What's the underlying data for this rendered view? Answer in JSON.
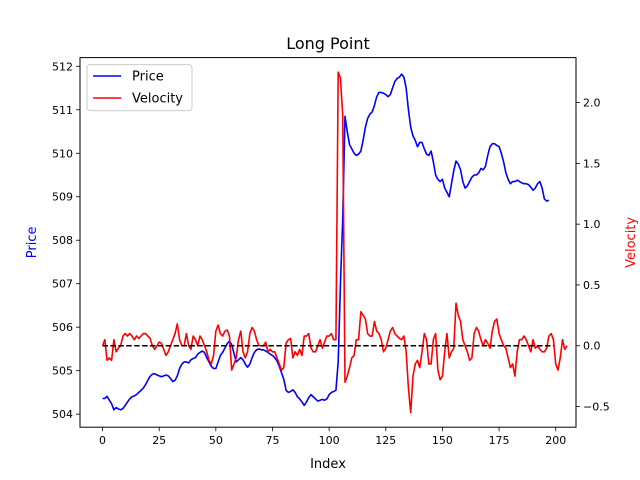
{
  "chart_data": {
    "type": "line",
    "title": "Long Point",
    "xlabel": "Index",
    "ylabel_left": "Price",
    "ylabel_right": "Velocity",
    "xlim": [
      -9.95,
      208.95
    ],
    "ylim_left": [
      503.7,
      512.2
    ],
    "ylim_right": [
      -0.67,
      2.37
    ],
    "x_ticks": [
      0,
      25,
      50,
      75,
      100,
      125,
      150,
      175,
      200
    ],
    "y_ticks_left": [
      504,
      505,
      506,
      507,
      508,
      509,
      510,
      511,
      512
    ],
    "y_ticks_right": [
      -0.5,
      0.0,
      0.5,
      1.0,
      1.5,
      2.0
    ],
    "y_tick_labels_right": [
      "−0.5",
      "0.0",
      "0.5",
      "1.0",
      "1.5",
      "2.0"
    ],
    "legend_position": "upper-left",
    "reference_line": {
      "y": 0.0,
      "axis": "right",
      "x_from": 0,
      "x_to": 199,
      "style": "dashed",
      "color": "#000000"
    },
    "series": [
      {
        "name": "Price",
        "axis": "left",
        "color": "#0000ff",
        "values": [
          504.36,
          504.36,
          504.41,
          504.32,
          504.24,
          504.1,
          504.15,
          504.12,
          504.1,
          504.13,
          504.2,
          504.28,
          504.35,
          504.4,
          504.42,
          504.45,
          504.5,
          504.55,
          504.6,
          504.68,
          504.78,
          504.87,
          504.92,
          504.93,
          504.9,
          504.88,
          504.86,
          504.88,
          504.9,
          504.88,
          504.82,
          504.75,
          504.78,
          504.88,
          505.05,
          505.15,
          505.2,
          505.2,
          505.18,
          505.25,
          505.28,
          505.3,
          505.38,
          505.42,
          505.45,
          505.42,
          505.3,
          505.2,
          505.1,
          505.05,
          505.05,
          505.2,
          505.35,
          505.42,
          505.52,
          505.62,
          505.68,
          505.6,
          505.4,
          505.2,
          505.25,
          505.3,
          505.25,
          505.15,
          505.08,
          505.15,
          505.3,
          505.42,
          505.48,
          505.5,
          505.48,
          505.48,
          505.45,
          505.42,
          505.38,
          505.35,
          505.3,
          505.22,
          505.1,
          504.95,
          504.8,
          504.55,
          504.5,
          504.52,
          504.56,
          504.5,
          504.4,
          504.35,
          504.28,
          504.2,
          504.28,
          504.38,
          504.45,
          504.4,
          504.35,
          504.3,
          504.32,
          504.34,
          504.32,
          504.35,
          504.45,
          504.5,
          504.52,
          504.55,
          505.2,
          507.0,
          508.5,
          510.85,
          510.5,
          510.2,
          510.1,
          510.0,
          509.95,
          509.98,
          510.05,
          510.3,
          510.6,
          510.8,
          510.9,
          510.95,
          511.1,
          511.3,
          511.4,
          511.4,
          511.38,
          511.35,
          511.3,
          511.35,
          511.5,
          511.65,
          511.72,
          511.75,
          511.82,
          511.75,
          511.5,
          511.0,
          510.6,
          510.4,
          510.3,
          510.15,
          510.25,
          510.25,
          510.1,
          509.98,
          509.95,
          510.05,
          509.8,
          509.5,
          509.4,
          509.35,
          509.4,
          509.2,
          509.1,
          509.0,
          509.3,
          509.6,
          509.82,
          509.75,
          509.62,
          509.35,
          509.2,
          509.25,
          509.35,
          509.45,
          509.5,
          509.5,
          509.55,
          509.65,
          509.62,
          509.7,
          509.95,
          510.15,
          510.22,
          510.22,
          510.18,
          510.15,
          510.0,
          509.8,
          509.55,
          509.4,
          509.3,
          509.35,
          509.35,
          509.38,
          509.35,
          509.32,
          509.3,
          509.3,
          509.28,
          509.22,
          509.15,
          509.2,
          509.3,
          509.35,
          509.2,
          508.95,
          508.9,
          508.92
        ]
      },
      {
        "name": "Velocity",
        "axis": "right",
        "color": "#ff0000",
        "values": [
          0.0,
          0.05,
          -0.12,
          -0.1,
          -0.12,
          0.05,
          -0.05,
          -0.02,
          0.0,
          0.08,
          0.1,
          0.08,
          0.1,
          0.08,
          0.05,
          0.08,
          0.06,
          0.08,
          0.1,
          0.1,
          0.08,
          0.06,
          0.0,
          -0.03,
          0.0,
          0.03,
          0.02,
          -0.03,
          -0.08,
          -0.05,
          0.0,
          0.05,
          0.1,
          0.18,
          0.05,
          0.0,
          0.0,
          0.1,
          0.0,
          -0.03,
          0.08,
          0.05,
          0.0,
          0.08,
          0.05,
          0.0,
          -0.05,
          -0.12,
          -0.15,
          -0.08,
          0.12,
          0.17,
          0.1,
          0.08,
          0.12,
          0.13,
          0.08,
          -0.2,
          -0.15,
          -0.1,
          0.05,
          0.12,
          -0.05,
          -0.1,
          -0.05,
          0.1,
          0.15,
          0.12,
          0.05,
          0.0,
          0.0,
          0.0,
          0.03,
          -0.05,
          -0.03,
          -0.05,
          -0.05,
          -0.1,
          -0.15,
          -0.2,
          -0.18,
          0.02,
          0.05,
          0.06,
          -0.1,
          -0.05,
          -0.08,
          -0.03,
          -0.08,
          0.08,
          0.08,
          0.1,
          -0.02,
          -0.05,
          -0.05,
          0.0,
          0.05,
          -0.02,
          0.03,
          0.08,
          0.08,
          0.1,
          0.05,
          0.05,
          2.25,
          2.2,
          1.9,
          -0.3,
          -0.25,
          -0.18,
          -0.1,
          -0.08,
          0.05,
          0.05,
          0.28,
          0.25,
          0.22,
          0.1,
          0.08,
          0.08,
          0.2,
          0.12,
          0.1,
          0.05,
          -0.05,
          -0.02,
          0.05,
          0.12,
          0.15,
          0.1,
          0.08,
          0.06,
          0.05,
          0.08,
          -0.05,
          -0.35,
          -0.55,
          -0.25,
          -0.15,
          -0.12,
          -0.18,
          -0.05,
          0.1,
          0.05,
          -0.15,
          -0.15,
          0.05,
          0.1,
          -0.2,
          -0.28,
          -0.25,
          -0.05,
          0.1,
          -0.1,
          -0.05,
          -0.02,
          0.35,
          0.25,
          0.2,
          0.05,
          0.0,
          -0.05,
          -0.12,
          -0.1,
          0.1,
          0.15,
          0.12,
          0.05,
          0.0,
          0.05,
          0.02,
          -0.02,
          0.12,
          0.2,
          0.22,
          0.1,
          0.05,
          0.0,
          -0.02,
          -0.1,
          -0.18,
          -0.15,
          -0.25,
          -0.05,
          0.05,
          0.05,
          0.08,
          0.05,
          0.0,
          -0.05,
          0.05,
          -0.02,
          0.0,
          -0.03,
          -0.05,
          -0.05,
          -0.02,
          0.08,
          0.1,
          0.05,
          -0.15,
          -0.2,
          -0.1,
          0.05,
          -0.03,
          0.0
        ]
      }
    ]
  }
}
